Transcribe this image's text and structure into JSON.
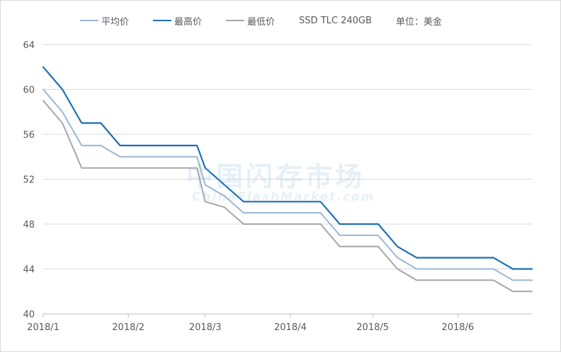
{
  "chart_data": {
    "type": "line",
    "title": "",
    "legend_extra": [
      "SSD TLC 240GB",
      "单位：美金"
    ],
    "legend_position": "top",
    "grid": true,
    "ylim": [
      40,
      64
    ],
    "y_ticks": [
      40,
      44,
      48,
      52,
      56,
      60,
      64
    ],
    "x_ticks": [
      "2018/1",
      "2018/2",
      "2018/3",
      "2018/4",
      "2018/5",
      "2018/6"
    ],
    "x": [
      "2018/1/1",
      "2018/1/8",
      "2018/1/15",
      "2018/1/22",
      "2018/1/29",
      "2018/2/5",
      "2018/2/12",
      "2018/2/19",
      "2018/2/26",
      "2018/3/1",
      "2018/3/8",
      "2018/3/15",
      "2018/3/22",
      "2018/3/29",
      "2018/4/5",
      "2018/4/12",
      "2018/4/19",
      "2018/4/26",
      "2018/5/3",
      "2018/5/10",
      "2018/5/17",
      "2018/5/24",
      "2018/5/31",
      "2018/6/7",
      "2018/6/14",
      "2018/6/21",
      "2018/6/28"
    ],
    "series": [
      {
        "name": "平均价",
        "color": "#9bb8d4",
        "values": [
          60,
          58,
          55,
          55,
          54,
          54,
          54,
          54,
          54,
          51.5,
          50.5,
          49,
          49,
          49,
          49,
          49,
          47,
          47,
          47,
          45,
          44,
          44,
          44,
          44,
          44,
          43,
          43
        ]
      },
      {
        "name": "最高价",
        "color": "#1f6fb3",
        "values": [
          62,
          60,
          57,
          57,
          55,
          55,
          55,
          55,
          55,
          53,
          51.5,
          50,
          50,
          50,
          50,
          50,
          48,
          48,
          48,
          46,
          45,
          45,
          45,
          45,
          45,
          44,
          44
        ]
      },
      {
        "name": "最低价",
        "color": "#a6a6a6",
        "values": [
          59,
          57,
          53,
          53,
          53,
          53,
          53,
          53,
          53,
          50,
          49.5,
          48,
          48,
          48,
          48,
          48,
          46,
          46,
          46,
          44,
          43,
          43,
          43,
          43,
          43,
          42,
          42
        ]
      }
    ]
  },
  "watermark": {
    "main": "中国闪存市场",
    "sub": "ChinaFlashMarket.com"
  }
}
